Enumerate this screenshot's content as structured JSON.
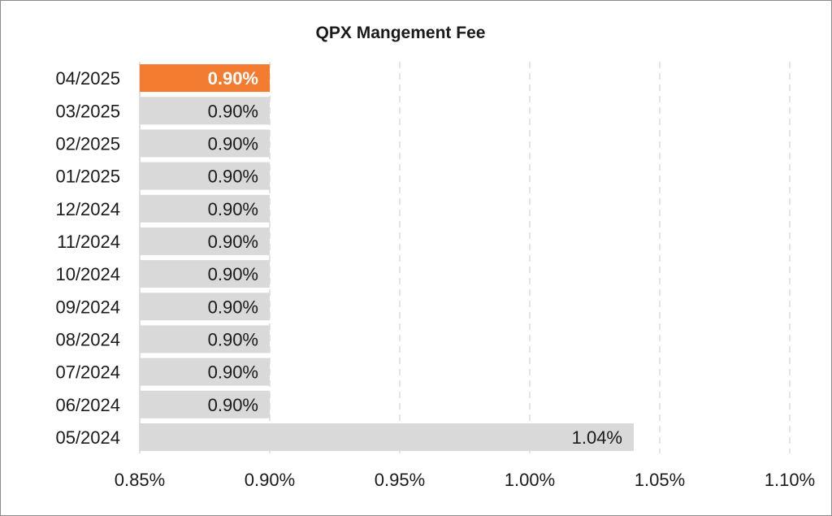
{
  "chart_data": {
    "type": "bar",
    "orientation": "horizontal",
    "title": "QPX Mangement Fee",
    "categories": [
      "04/2025",
      "03/2025",
      "02/2025",
      "01/2025",
      "12/2024",
      "11/2024",
      "10/2024",
      "09/2024",
      "08/2024",
      "07/2024",
      "06/2024",
      "05/2024"
    ],
    "values": [
      0.9,
      0.9,
      0.9,
      0.9,
      0.9,
      0.9,
      0.9,
      0.9,
      0.9,
      0.9,
      0.9,
      1.04
    ],
    "value_labels": [
      "0.90%",
      "0.90%",
      "0.90%",
      "0.90%",
      "0.90%",
      "0.90%",
      "0.90%",
      "0.90%",
      "0.90%",
      "0.90%",
      "0.90%",
      "1.04%"
    ],
    "highlight_index": 0,
    "xlim": [
      0.85,
      1.1
    ],
    "xticks": [
      0.85,
      0.9,
      0.95,
      1.0,
      1.05,
      1.1
    ],
    "xtick_labels": [
      "0.85%",
      "0.90%",
      "0.95%",
      "1.00%",
      "1.05%",
      "1.10%"
    ],
    "xlabel": "",
    "ylabel": "",
    "grid": "vertical dashed",
    "legend": "none",
    "colors": {
      "highlight": "#f47c30",
      "bar": "#d9d9d9",
      "grid": "#c8c8c8",
      "axis": "#bfbfbf"
    }
  }
}
